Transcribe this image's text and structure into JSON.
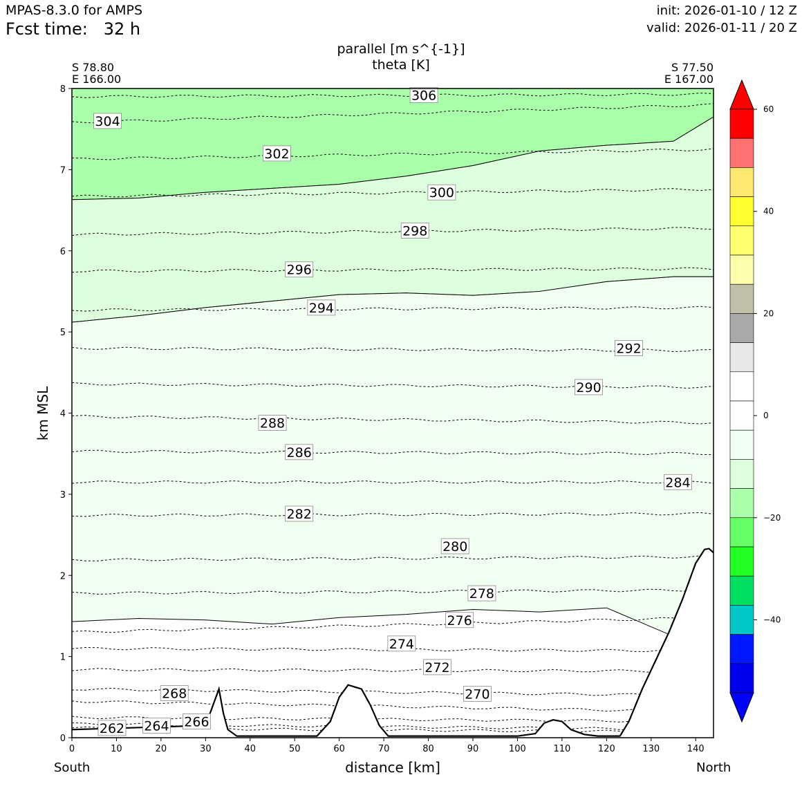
{
  "header": {
    "model": "MPAS-8.3.0 for AMPS",
    "fcst_label": "Fcst time:",
    "fcst_value": "32 h",
    "init": "init: 2026-01-10 / 12 Z",
    "valid": "valid: 2026-01-11 / 20 Z"
  },
  "chart_data": {
    "type": "cross-section",
    "title": "parallel [m s^{-1}]",
    "subtitle": "theta [K]",
    "xlabel": "distance [km]",
    "ylabel": "km MSL",
    "xlim": [
      0,
      144
    ],
    "ylim": [
      0,
      8
    ],
    "x_ticks": [
      "0",
      "10",
      "20",
      "30",
      "40",
      "50",
      "60",
      "70",
      "80",
      "90",
      "100",
      "110",
      "120",
      "130",
      "140"
    ],
    "y_ticks": [
      "0",
      "1",
      "2",
      "3",
      "4",
      "5",
      "6",
      "7",
      "8"
    ],
    "left_end": {
      "lat": "S 78.80",
      "lon": "E 166.00",
      "label": "South"
    },
    "right_end": {
      "lat": "S 77.50",
      "lon": "E 167.00",
      "label": "North"
    },
    "wind_bands": [
      {
        "range": "-20 to -15",
        "color": "#aaffaa",
        "y_low": [
          6.63,
          6.65,
          6.72,
          6.77,
          6.82,
          6.92,
          7.05,
          7.23,
          7.3,
          7.35,
          7.65
        ],
        "y_high": 8.0
      },
      {
        "range": "-15 to -10",
        "color": "#ddffdd",
        "y_low": [
          5.12,
          5.2,
          5.3,
          5.38,
          5.46,
          5.48,
          5.45,
          5.5,
          5.62,
          5.68,
          5.68
        ],
        "y_high": [
          6.63,
          6.65,
          6.72,
          6.77,
          6.82,
          6.92,
          7.05,
          7.23,
          7.3,
          7.35,
          7.65
        ]
      },
      {
        "range": "-10 to -5",
        "color": "#f0fff0",
        "y_low": [
          1.43,
          1.47,
          1.45,
          1.4,
          1.48,
          1.52,
          1.58,
          1.55,
          1.6,
          1.25,
          2.3
        ],
        "y_high": [
          5.12,
          5.2,
          5.3,
          5.38,
          5.46,
          5.48,
          5.45,
          5.5,
          5.62,
          5.68,
          5.68
        ]
      }
    ],
    "band_x": [
      0,
      15,
      30,
      45,
      60,
      75,
      90,
      105,
      120,
      135,
      144
    ],
    "theta_levels": [
      {
        "label": "262",
        "y0": 0.12,
        "y1": 0.07,
        "lx": 9,
        "ly": 0.12
      },
      {
        "label": "264",
        "y0": 0.17,
        "y1": 0.1,
        "lx": 19,
        "ly": 0.15
      },
      {
        "label": "266",
        "y0": 0.25,
        "y1": 0.2,
        "lx": 28,
        "ly": 0.2
      },
      {
        "label": "268",
        "y0": 0.45,
        "y1": 0.32,
        "lx": 23,
        "ly": 0.55
      },
      {
        "label": "270",
        "y0": 0.6,
        "y1": 0.52,
        "lx": 91,
        "ly": 0.54
      },
      {
        "label": "272",
        "y0": 0.84,
        "y1": 0.82,
        "lx": 82,
        "ly": 0.87
      },
      {
        "label": "274",
        "y0": 1.1,
        "y1": 1.07,
        "lx": 74,
        "ly": 1.16
      },
      {
        "label": "276",
        "y0": 1.3,
        "y1": 1.48,
        "lx": 87,
        "ly": 1.45
      },
      {
        "label": "278",
        "y0": 1.78,
        "y1": 1.82,
        "lx": 92,
        "ly": 1.78
      },
      {
        "label": "280",
        "y0": 2.19,
        "y1": 2.23,
        "lx": 86,
        "ly": 2.36
      },
      {
        "label": "282",
        "y0": 2.74,
        "y1": 2.76,
        "lx": 51,
        "ly": 2.76
      },
      {
        "label": "284",
        "y0": 3.15,
        "y1": 3.15,
        "lx": 136,
        "ly": 3.15
      },
      {
        "label": "286",
        "y0": 3.53,
        "y1": 3.5,
        "lx": 51,
        "ly": 3.52
      },
      {
        "label": "288",
        "y0": 3.96,
        "y1": 3.88,
        "lx": 45,
        "ly": 3.88
      },
      {
        "label": "290",
        "y0": 4.36,
        "y1": 4.32,
        "lx": 116,
        "ly": 4.32
      },
      {
        "label": "292",
        "y0": 4.8,
        "y1": 4.77,
        "lx": 125,
        "ly": 4.8
      },
      {
        "label": "294",
        "y0": 5.27,
        "y1": 5.3,
        "lx": 56,
        "ly": 5.3
      },
      {
        "label": "296",
        "y0": 5.75,
        "y1": 5.78,
        "lx": 51,
        "ly": 5.77
      },
      {
        "label": "298",
        "y0": 6.2,
        "y1": 6.28,
        "lx": 77,
        "ly": 6.25
      },
      {
        "label": "300",
        "y0": 6.67,
        "y1": 6.76,
        "lx": 83,
        "ly": 6.72
      },
      {
        "label": "302",
        "y0": 7.13,
        "y1": 7.25,
        "lx": 46,
        "ly": 7.2
      },
      {
        "label": "304",
        "y0": 7.58,
        "y1": 7.8,
        "lx": 8,
        "ly": 7.6
      },
      {
        "label": "306",
        "y0": 7.9,
        "y1": 7.93,
        "lx": 79,
        "ly": 7.92
      }
    ],
    "terrain": {
      "x": [
        0,
        30,
        33,
        34,
        35,
        37,
        45,
        55,
        58,
        60,
        62,
        65,
        67,
        69,
        71,
        80,
        90,
        100,
        104,
        106,
        108,
        110,
        112,
        115,
        118,
        123,
        125,
        128,
        131,
        134,
        137,
        140,
        142,
        143,
        144
      ],
      "y": [
        0.1,
        0.15,
        0.6,
        0.3,
        0.1,
        0.02,
        0.02,
        0.02,
        0.2,
        0.5,
        0.65,
        0.6,
        0.4,
        0.15,
        0.02,
        0.02,
        0.02,
        0.02,
        0.05,
        0.18,
        0.22,
        0.2,
        0.1,
        0.04,
        0.02,
        0.02,
        0.2,
        0.6,
        0.95,
        1.3,
        1.7,
        2.15,
        2.32,
        2.33,
        2.28
      ]
    },
    "colorbar": {
      "ticks": [
        "60",
        "40",
        "20",
        "0",
        "−20",
        "−40"
      ],
      "colors": [
        "#ff0000",
        "#ff7070",
        "#ffe870",
        "#ffff30",
        "#ffff70",
        "#ffffaa",
        "#c0c0a8",
        "#a9a9a9",
        "#e8e8e8",
        "#ffffff",
        "#ffffff",
        "#f0fff0",
        "#ddffdd",
        "#aaffaa",
        "#66ff66",
        "#22ff22",
        "#00e060",
        "#00c8c8",
        "#0018ff",
        "#0000ee"
      ],
      "over_color": "#ff0000",
      "under_color": "#0000ff"
    }
  }
}
